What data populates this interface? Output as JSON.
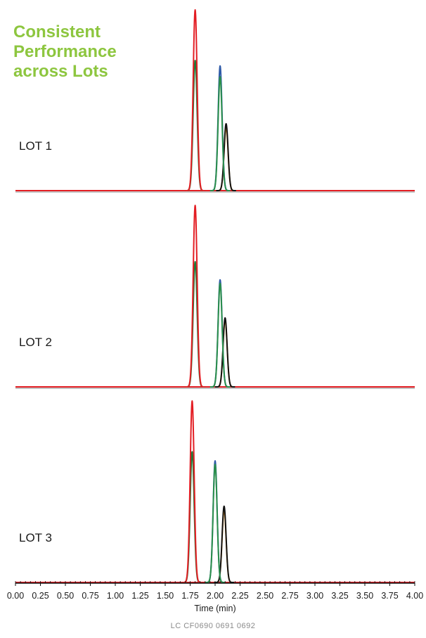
{
  "headline": {
    "lines": [
      "Consistent",
      "Performance",
      "across Lots"
    ],
    "color": "#8dc63f"
  },
  "footer_code": "LC  CF0690  0691  0692",
  "colors": {
    "red": "#e31e24",
    "darkgreen": "#1e7b3a",
    "blue": "#2e5aa8",
    "green": "#2a8f4a",
    "black": "#111111",
    "orange": "#f39a1e",
    "baseline": "#e31e24"
  },
  "chart_data": {
    "type": "line",
    "title": "",
    "xlabel": "Time (min)",
    "ylabel": "",
    "xlim": [
      0,
      4
    ],
    "x_ticks": [
      "0.00",
      "0.25",
      "0.50",
      "0.75",
      "1.00",
      "1.25",
      "1.50",
      "1.75",
      "2.00",
      "2.25",
      "2.50",
      "2.75",
      "3.00",
      "3.25",
      "3.50",
      "3.75",
      "4.00"
    ],
    "grid": false,
    "legend": "none",
    "panels": [
      {
        "label": "LOT 1",
        "peaks": [
          {
            "color": "red",
            "rt": 1.8,
            "height": 1.0
          },
          {
            "color": "darkgreen",
            "rt": 1.8,
            "height": 0.72
          },
          {
            "color": "blue",
            "rt": 2.05,
            "height": 0.69
          },
          {
            "color": "green",
            "rt": 2.05,
            "height": 0.63
          },
          {
            "color": "black",
            "rt": 2.11,
            "height": 0.37
          },
          {
            "color": "orange",
            "rt": 2.11,
            "height": 0.35
          }
        ]
      },
      {
        "label": "LOT 2",
        "peaks": [
          {
            "color": "red",
            "rt": 1.8,
            "height": 1.0
          },
          {
            "color": "darkgreen",
            "rt": 1.8,
            "height": 0.69
          },
          {
            "color": "blue",
            "rt": 2.05,
            "height": 0.59
          },
          {
            "color": "green",
            "rt": 2.05,
            "height": 0.57
          },
          {
            "color": "black",
            "rt": 2.1,
            "height": 0.38
          },
          {
            "color": "orange",
            "rt": 2.1,
            "height": 0.37
          }
        ]
      },
      {
        "label": "LOT 3",
        "peaks": [
          {
            "color": "red",
            "rt": 1.77,
            "height": 1.0
          },
          {
            "color": "darkgreen",
            "rt": 1.77,
            "height": 0.72
          },
          {
            "color": "blue",
            "rt": 2.0,
            "height": 0.67
          },
          {
            "color": "green",
            "rt": 2.0,
            "height": 0.65
          },
          {
            "color": "black",
            "rt": 2.09,
            "height": 0.42
          },
          {
            "color": "orange",
            "rt": 2.09,
            "height": 0.4
          }
        ]
      }
    ]
  }
}
